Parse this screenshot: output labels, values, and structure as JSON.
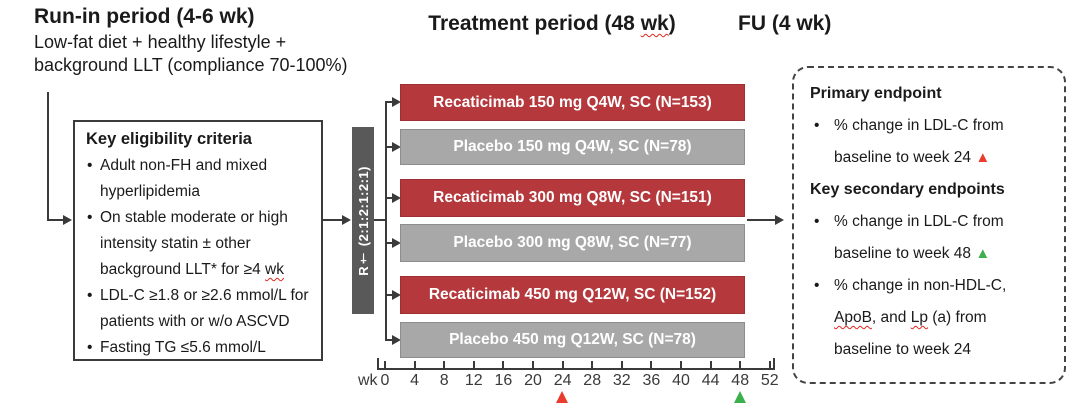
{
  "palette": {
    "treatment_red": "#b5383c",
    "placebo_gray": "#a8a8a8",
    "randomization_gray": "#595959",
    "marker_red": "#ea3b2e",
    "marker_green": "#3cb04d"
  },
  "header": {
    "run_in_title": "Run-in period (4-6 wk)",
    "run_in_sub_line1": "Low-fat diet + healthy lifestyle +",
    "run_in_sub_line2": "background LLT (compliance 70-100%)",
    "treatment_title_pre": "Treatment period (48 ",
    "treatment_title_wk": "wk",
    "treatment_title_post": ")",
    "fu_title": "FU (4 wk)"
  },
  "eligibility": {
    "title": "Key eligibility criteria",
    "item1": "Adult non-FH and mixed hyperlipidemia",
    "item2_pre": "On stable moderate or high intensity statin ± other background LLT* for ≥4 ",
    "item2_wk": "wk",
    "item3": "LDL-C ≥1.8 or ≥2.6 mmol/L for patients with or w/o ASCVD",
    "item4": "Fasting TG ≤5.6 mmol/L"
  },
  "randomization": {
    "label": "R† (2:1:2:1:2:1)"
  },
  "arms": [
    {
      "label": "Recaticimab 150 mg Q4W, SC (N=153)",
      "type": "treatment"
    },
    {
      "label": "Placebo 150 mg Q4W, SC (N=78)",
      "type": "placebo"
    },
    {
      "label": "Recaticimab 300 mg Q8W, SC (N=151)",
      "type": "treatment"
    },
    {
      "label": "Placebo 300 mg Q8W, SC (N=77)",
      "type": "placebo"
    },
    {
      "label": "Recaticimab 450 mg Q12W, SC (N=152)",
      "type": "treatment"
    },
    {
      "label": "Placebo 450 mg Q12W, SC (N=78)",
      "type": "placebo"
    }
  ],
  "timeline": {
    "unit": "wk",
    "ticks": [
      "0",
      "4",
      "8",
      "12",
      "16",
      "20",
      "24",
      "28",
      "32",
      "36",
      "40",
      "44",
      "48",
      "52"
    ],
    "markers": [
      {
        "week": "24",
        "color": "red"
      },
      {
        "week": "48",
        "color": "green"
      }
    ]
  },
  "endpoints": {
    "primary_title": "Primary endpoint",
    "primary_item": {
      "line1": "% change in LDL-C from",
      "line2": "baseline to week 24 ",
      "marker": "▲"
    },
    "secondary_title": "Key secondary endpoints",
    "secondary_item1": {
      "line1": "% change in LDL-C from",
      "line2": "baseline to week 48 ",
      "marker": "▲"
    },
    "secondary_item2": {
      "line1": "% change in non-HDL-C,",
      "line2_apob": "ApoB",
      "line2_mid": ", and ",
      "line2_lp": "Lp",
      "line2_rest": " (a) from",
      "line3": "baseline to week 24"
    }
  }
}
